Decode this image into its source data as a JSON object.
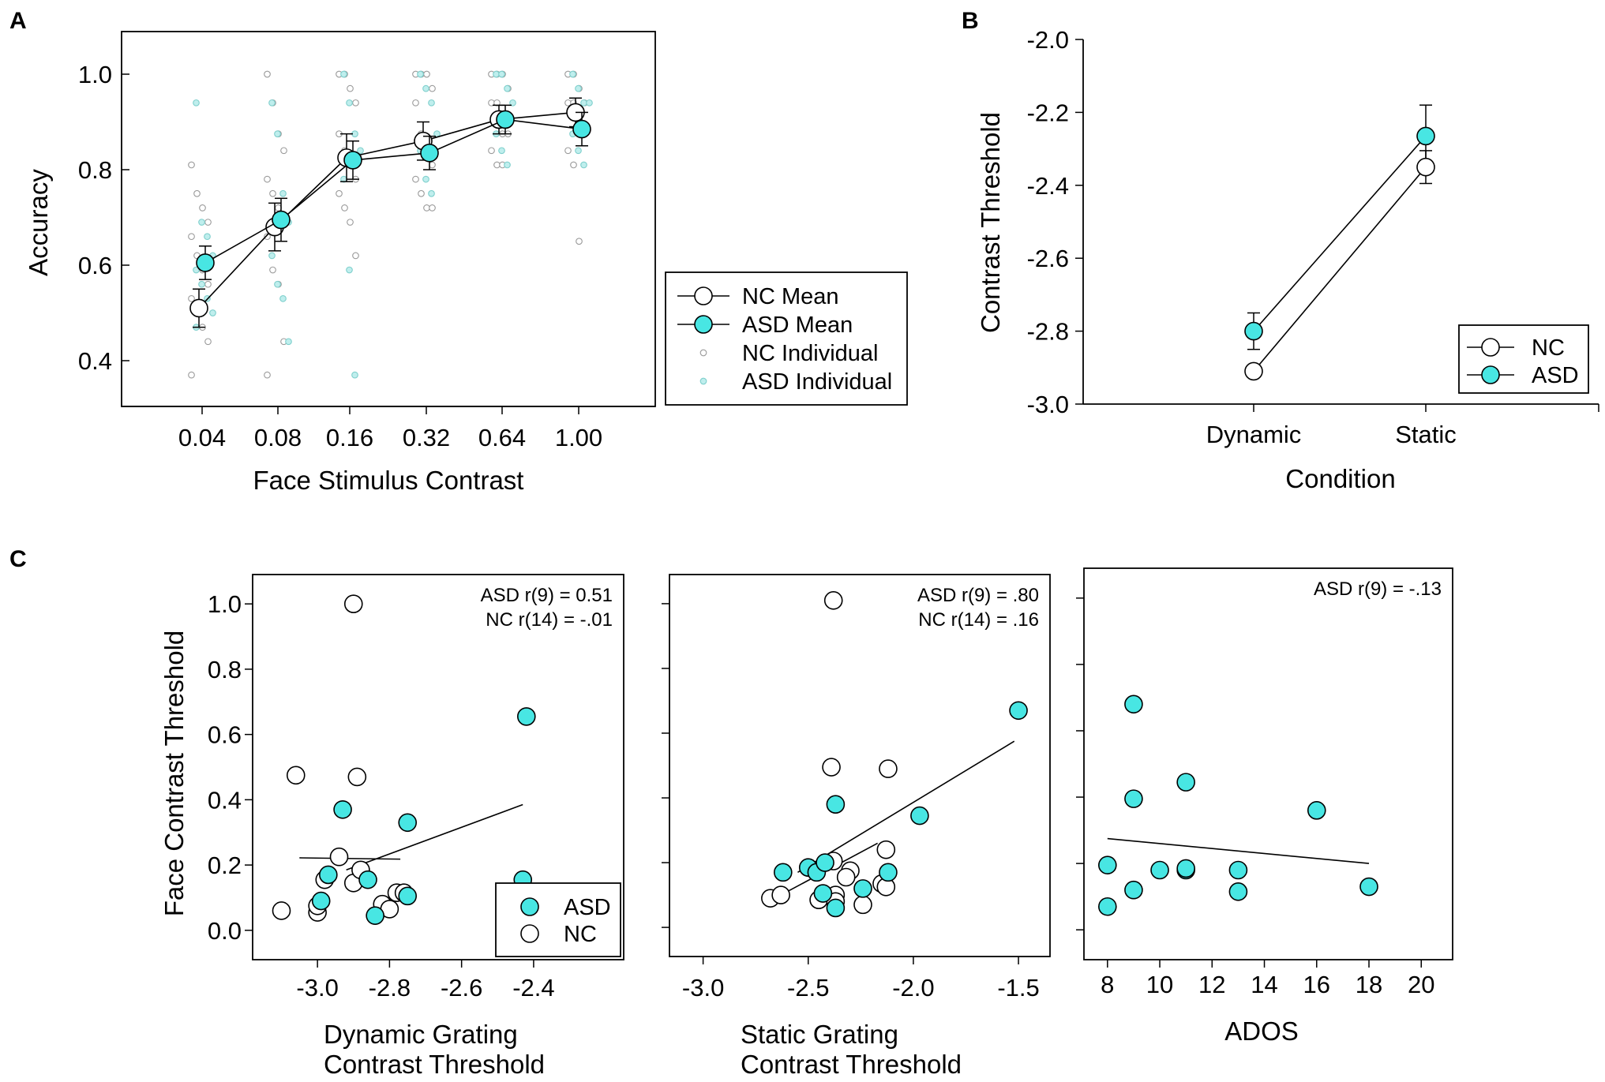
{
  "colors": {
    "asd": "#48e6e3",
    "nc": "#ffffff",
    "stroke": "#000000"
  },
  "panels": [
    {
      "id": "A",
      "chart_data": {
        "type": "line",
        "xlabel": "Face Stimulus Contrast",
        "ylabel": "Accuracy",
        "x": [
          "0.04",
          "0.08",
          "0.16",
          "0.32",
          "0.64",
          "1.00"
        ],
        "yticks": [
          "0.4",
          "0.6",
          "0.8",
          "1.0"
        ],
        "ylim": [
          0.32,
          1.08
        ],
        "legend": {
          "position": "right",
          "items": [
            {
              "label": "NC Mean",
              "marker": "nc-large"
            },
            {
              "label": "ASD Mean",
              "marker": "asd-large"
            },
            {
              "label": "NC Individual",
              "marker": "nc-small"
            },
            {
              "label": "ASD Individual",
              "marker": "asd-small"
            }
          ]
        },
        "series": [
          {
            "name": "NC Mean",
            "values": [
              0.51,
              0.68,
              0.825,
              0.86,
              0.905,
              0.92
            ],
            "err": [
              0.04,
              0.05,
              0.05,
              0.04,
              0.03,
              0.03
            ],
            "xoff": -0.04
          },
          {
            "name": "ASD Mean",
            "values": [
              0.605,
              0.695,
              0.82,
              0.835,
              0.905,
              0.885
            ],
            "err": [
              0.035,
              0.045,
              0.04,
              0.035,
              0.03,
              0.035
            ],
            "xoff": 0.04
          }
        ],
        "individual": {
          "nc": [
            [
              0.81,
              0.75,
              0.72,
              0.69,
              0.66,
              0.62,
              0.59,
              0.56,
              0.53,
              0.5,
              0.47,
              0.44,
              0.37
            ],
            [
              1.0,
              0.94,
              0.875,
              0.84,
              0.78,
              0.75,
              0.72,
              0.69,
              0.66,
              0.59,
              0.56,
              0.44,
              0.37
            ],
            [
              1.0,
              1.0,
              0.97,
              0.94,
              0.875,
              0.84,
              0.81,
              0.78,
              0.75,
              0.72,
              0.69,
              0.62
            ],
            [
              1.0,
              1.0,
              1.0,
              0.97,
              0.94,
              0.875,
              0.84,
              0.81,
              0.78,
              0.75,
              0.72,
              0.72
            ],
            [
              1.0,
              1.0,
              1.0,
              0.97,
              0.94,
              0.94,
              0.875,
              0.875,
              0.84,
              0.81,
              0.81
            ],
            [
              1.0,
              1.0,
              0.97,
              0.94,
              0.94,
              0.94,
              0.875,
              0.875,
              0.84,
              0.81,
              0.65
            ]
          ],
          "asd": [
            [
              0.94,
              0.69,
              0.66,
              0.62,
              0.59,
              0.56,
              0.53,
              0.5,
              0.47
            ],
            [
              0.94,
              0.875,
              0.75,
              0.69,
              0.62,
              0.56,
              0.53,
              0.44
            ],
            [
              1.0,
              0.94,
              0.875,
              0.84,
              0.78,
              0.59,
              0.37
            ],
            [
              1.0,
              0.97,
              0.94,
              0.875,
              0.84,
              0.78,
              0.75
            ],
            [
              1.0,
              1.0,
              0.97,
              0.94,
              0.875,
              0.84,
              0.81
            ],
            [
              1.0,
              0.97,
              0.94,
              0.94,
              0.875,
              0.84,
              0.81
            ]
          ]
        }
      }
    },
    {
      "id": "B",
      "chart_data": {
        "type": "line",
        "xlabel": "Condition",
        "ylabel": "Contrast Threshold",
        "x": [
          "Dynamic",
          "Static"
        ],
        "yticks": [
          "-2.0",
          "-2.2",
          "-2.4",
          "-2.6",
          "-2.8",
          "-3.0"
        ],
        "ylim": [
          -3.0,
          -2.0
        ],
        "legend": {
          "position": "bottom-right",
          "items": [
            {
              "label": "NC",
              "marker": "nc-large"
            },
            {
              "label": "ASD",
              "marker": "asd-large"
            }
          ]
        },
        "series": [
          {
            "name": "NC",
            "values": [
              -2.91,
              -2.35
            ],
            "err": [
              0,
              0.045
            ]
          },
          {
            "name": "ASD",
            "values": [
              -2.8,
              -2.265
            ],
            "err": [
              0.05,
              0.085
            ]
          }
        ]
      }
    },
    {
      "id": "C",
      "ylabel": "Face Contrast Threshold",
      "subplots": [
        {
          "chart_data": {
            "type": "scatter",
            "xlabel": [
              "Dynamic Grating",
              "Contrast Threshold"
            ],
            "xticks": [
              "-3.0",
              "-2.8",
              "-2.6",
              "-2.4"
            ],
            "yticks": [
              "0.0",
              "0.2",
              "0.4",
              "0.6",
              "0.8",
              "1.0"
            ],
            "xlim": [
              -3.18,
              -2.15
            ],
            "ylim": [
              -0.09,
              1.09
            ],
            "annotation": [
              "ASD r(9) = 0.51",
              "NC r(14) = -.01"
            ],
            "legend": {
              "position": "bottom-right",
              "items": [
                {
                  "label": "ASD",
                  "marker": "asd-large"
                },
                {
                  "label": "NC",
                  "marker": "nc-large"
                }
              ]
            },
            "fits": [
              {
                "name": "NC fit",
                "x": [
                  -3.05,
                  -2.77
                ],
                "y": [
                  0.222,
                  0.218
                ]
              },
              {
                "name": "ASD fit",
                "x": [
                  -2.92,
                  -2.43
                ],
                "y": [
                  0.185,
                  0.385
                ]
              }
            ],
            "nc": [
              [
                -3.1,
                0.06
              ],
              [
                -3.0,
                0.055
              ],
              [
                -3.0,
                0.075
              ],
              [
                -2.98,
                0.155
              ],
              [
                -2.94,
                0.225
              ],
              [
                -2.9,
                0.145
              ],
              [
                -2.88,
                0.185
              ],
              [
                -2.82,
                0.08
              ],
              [
                -2.8,
                0.065
              ],
              [
                -2.78,
                0.115
              ],
              [
                -2.76,
                0.115
              ],
              [
                -3.06,
                0.475
              ],
              [
                -2.89,
                0.47
              ],
              [
                -2.9,
                1.0
              ]
            ],
            "asd": [
              [
                -2.97,
                0.17
              ],
              [
                -2.99,
                0.09
              ],
              [
                -2.93,
                0.37
              ],
              [
                -2.86,
                0.155
              ],
              [
                -2.75,
                0.33
              ],
              [
                -2.75,
                0.105
              ],
              [
                -2.84,
                0.045
              ],
              [
                -2.43,
                0.155
              ],
              [
                -2.42,
                0.655
              ]
            ]
          }
        },
        {
          "chart_data": {
            "type": "scatter",
            "xlabel": [
              "Static Grating",
              "Contrast Threshold"
            ],
            "xticks": [
              "-3.0",
              "-2.5",
              "-2.0",
              "-1.5"
            ],
            "xlim": [
              -3.16,
              -1.35
            ],
            "ylim": [
              -0.09,
              1.09
            ],
            "annotation": [
              "ASD r(9) = .80",
              "NC r(14) = .16"
            ],
            "fits": [
              {
                "name": "NC fit",
                "x": [
                  -2.63,
                  -2.17
                ],
                "y": [
                  0.1,
                  0.26
                ]
              },
              {
                "name": "ASD fit",
                "x": [
                  -2.55,
                  -1.52
                ],
                "y": [
                  0.17,
                  0.575
                ]
              }
            ],
            "nc": [
              [
                -2.68,
                0.09
              ],
              [
                -2.63,
                0.1
              ],
              [
                -2.45,
                0.085
              ],
              [
                -2.37,
                0.1
              ],
              [
                -2.37,
                0.08
              ],
              [
                -2.38,
                0.205
              ],
              [
                -2.3,
                0.175
              ],
              [
                -2.32,
                0.155
              ],
              [
                -2.24,
                0.07
              ],
              [
                -2.15,
                0.135
              ],
              [
                -2.13,
                0.24
              ],
              [
                -2.13,
                0.125
              ],
              [
                -2.12,
                0.49
              ],
              [
                -2.39,
                0.495
              ],
              [
                -2.38,
                1.01
              ]
            ],
            "asd": [
              [
                -2.62,
                0.17
              ],
              [
                -2.5,
                0.185
              ],
              [
                -2.46,
                0.17
              ],
              [
                -2.42,
                0.2
              ],
              [
                -2.43,
                0.105
              ],
              [
                -2.37,
                0.38
              ],
              [
                -2.37,
                0.06
              ],
              [
                -2.24,
                0.12
              ],
              [
                -2.12,
                0.17
              ],
              [
                -1.97,
                0.345
              ],
              [
                -1.5,
                0.67
              ]
            ]
          }
        },
        {
          "chart_data": {
            "type": "scatter",
            "xlabel": [
              "ADOS"
            ],
            "xticks": [
              "8",
              "10",
              "12",
              "14",
              "16",
              "18",
              "20"
            ],
            "xlim": [
              7.1,
              21.2
            ],
            "ylim": [
              -0.09,
              1.09
            ],
            "annotation": [
              "ASD r(9) = -.13"
            ],
            "fits": [
              {
                "name": "ASD fit",
                "x": [
                  8,
                  18
                ],
                "y": [
                  0.275,
                  0.2
                ]
              }
            ],
            "asd": [
              [
                8,
                0.195
              ],
              [
                8,
                0.07
              ],
              [
                9,
                0.68
              ],
              [
                9,
                0.395
              ],
              [
                9,
                0.12
              ],
              [
                10,
                0.18
              ],
              [
                11,
                0.445
              ],
              [
                11,
                0.18
              ],
              [
                11,
                0.185
              ],
              [
                13,
                0.18
              ],
              [
                13,
                0.115
              ],
              [
                16,
                0.36
              ],
              [
                18,
                0.13
              ]
            ]
          }
        }
      ]
    }
  ]
}
